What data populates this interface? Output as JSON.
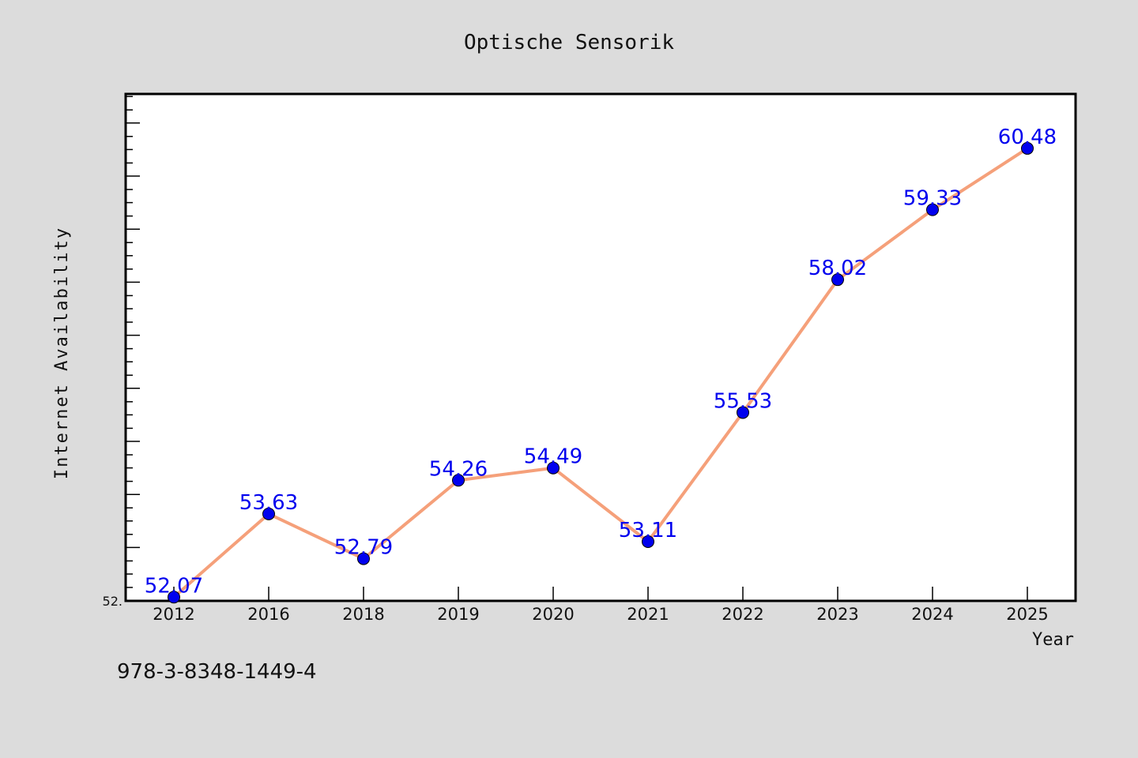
{
  "chart_data": {
    "type": "line",
    "title": "Optische Sensorik",
    "xlabel": "Year",
    "ylabel": "Internet Availability",
    "categories": [
      "2012",
      "2016",
      "2018",
      "2019",
      "2020",
      "2021",
      "2022",
      "2023",
      "2024",
      "2025"
    ],
    "series": [
      {
        "values": [
          52.07,
          53.63,
          52.79,
          54.26,
          54.49,
          53.11,
          55.53,
          58.02,
          59.33,
          60.48
        ],
        "labels": [
          "52.07",
          "53.63",
          "52.79",
          "54.26",
          "54.49",
          "53.11",
          "55.53",
          "58.02",
          "59.33",
          "60.48"
        ],
        "line_color": "#f5a07a",
        "marker_color": "#0000ee",
        "label_color": "#0000ee"
      }
    ],
    "ylim": [
      52.0,
      61.5
    ],
    "ytick_labels": [
      "52."
    ],
    "grid": false,
    "legend": "none"
  },
  "footer": {
    "isbn": "978-3-8348-1449-4"
  }
}
